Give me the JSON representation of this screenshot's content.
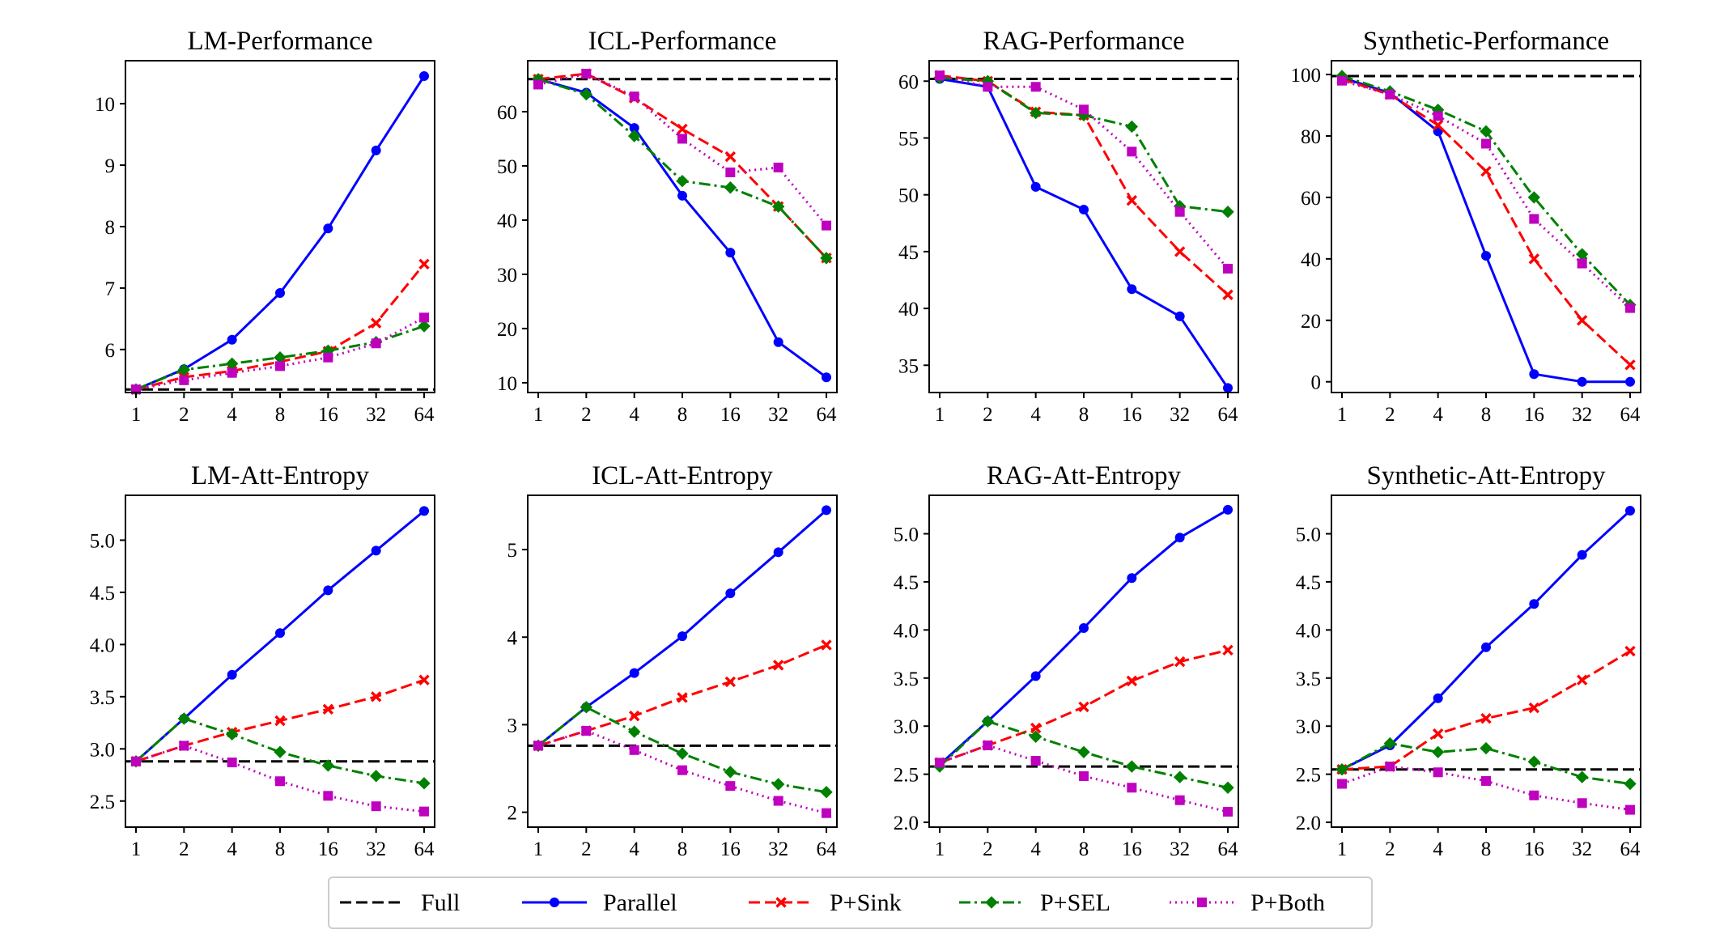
{
  "legend": {
    "entries": [
      {
        "key": "full",
        "label": "Full",
        "color": "#000000",
        "dash": "dashed",
        "marker": "none"
      },
      {
        "key": "parallel",
        "label": "Parallel",
        "color": "#0000ff",
        "dash": "solid",
        "marker": "circle"
      },
      {
        "key": "sink",
        "label": "P+Sink",
        "color": "#ff0000",
        "dash": "dashed",
        "marker": "x"
      },
      {
        "key": "sel",
        "label": "P+SEL",
        "color": "#008000",
        "dash": "dashdot",
        "marker": "diamond"
      },
      {
        "key": "both",
        "label": "P+Both",
        "color": "#bf00bf",
        "dash": "dotted",
        "marker": "square"
      }
    ],
    "placement": "bottom-center"
  },
  "chart_data": [
    {
      "type": "line",
      "title": "LM-Performance",
      "categories": [
        "1",
        "2",
        "4",
        "8",
        "16",
        "32",
        "64"
      ],
      "ylim": [
        5.3,
        10.7
      ],
      "yticks": [
        6,
        7,
        8,
        9,
        10
      ],
      "ytick_labels": [
        "6",
        "7",
        "8",
        "9",
        "10"
      ],
      "full": 5.35,
      "series": [
        {
          "key": "parallel",
          "name": "Parallel",
          "values": [
            5.35,
            5.68,
            6.16,
            6.92,
            7.97,
            9.24,
            10.45
          ]
        },
        {
          "key": "sink",
          "name": "P+Sink",
          "values": [
            5.35,
            5.55,
            5.65,
            5.8,
            5.97,
            6.43,
            7.39
          ]
        },
        {
          "key": "sel",
          "name": "P+SEL",
          "values": [
            5.35,
            5.67,
            5.77,
            5.87,
            5.98,
            6.12,
            6.38
          ]
        },
        {
          "key": "both",
          "name": "P+Both",
          "values": [
            5.35,
            5.5,
            5.62,
            5.73,
            5.87,
            6.1,
            6.52
          ]
        }
      ]
    },
    {
      "type": "line",
      "title": "ICL-Performance",
      "categories": [
        "1",
        "2",
        "4",
        "8",
        "16",
        "32",
        "64"
      ],
      "ylim": [
        8.2,
        69.4
      ],
      "yticks": [
        10,
        20,
        30,
        40,
        50,
        60
      ],
      "ytick_labels": [
        "10",
        "20",
        "30",
        "40",
        "50",
        "60"
      ],
      "full": 66.0,
      "series": [
        {
          "key": "parallel",
          "name": "Parallel",
          "values": [
            66.0,
            63.5,
            57.0,
            44.5,
            34.0,
            17.5,
            11.0
          ]
        },
        {
          "key": "sink",
          "name": "P+Sink",
          "values": [
            66.0,
            67.0,
            62.5,
            56.8,
            51.7,
            42.5,
            33.0
          ]
        },
        {
          "key": "sel",
          "name": "P+SEL",
          "values": [
            66.0,
            63.2,
            55.5,
            47.2,
            46.0,
            42.5,
            33.0
          ]
        },
        {
          "key": "both",
          "name": "P+Both",
          "values": [
            65.0,
            67.0,
            62.8,
            55.0,
            48.8,
            49.7,
            39.0
          ]
        }
      ]
    },
    {
      "type": "line",
      "title": "RAG-Performance",
      "categories": [
        "1",
        "2",
        "4",
        "8",
        "16",
        "32",
        "64"
      ],
      "ylim": [
        32.6,
        61.8
      ],
      "yticks": [
        35,
        40,
        45,
        50,
        55,
        60
      ],
      "ytick_labels": [
        "35",
        "40",
        "45",
        "50",
        "55",
        "60"
      ],
      "full": 60.2,
      "series": [
        {
          "key": "parallel",
          "name": "Parallel",
          "values": [
            60.2,
            59.5,
            50.7,
            48.7,
            41.7,
            39.3,
            33.0
          ]
        },
        {
          "key": "sink",
          "name": "P+Sink",
          "values": [
            60.5,
            60.0,
            57.3,
            57.0,
            49.5,
            45.0,
            41.2
          ]
        },
        {
          "key": "sel",
          "name": "P+SEL",
          "values": [
            60.3,
            60.0,
            57.2,
            57.0,
            56.0,
            49.0,
            48.5
          ]
        },
        {
          "key": "both",
          "name": "P+Both",
          "values": [
            60.5,
            59.5,
            59.5,
            57.5,
            53.8,
            48.5,
            43.5
          ]
        }
      ]
    },
    {
      "type": "line",
      "title": "Synthetic-Performance",
      "categories": [
        "1",
        "2",
        "4",
        "8",
        "16",
        "32",
        "64"
      ],
      "ylim": [
        -3.5,
        104.5
      ],
      "yticks": [
        0,
        20,
        40,
        60,
        80,
        100
      ],
      "ytick_labels": [
        "0",
        "20",
        "40",
        "60",
        "80",
        "100"
      ],
      "full": 99.5,
      "series": [
        {
          "key": "parallel",
          "name": "Parallel",
          "values": [
            99.0,
            94.0,
            81.5,
            41.0,
            2.5,
            0.0,
            0.0
          ]
        },
        {
          "key": "sink",
          "name": "P+Sink",
          "values": [
            98.5,
            93.5,
            83.5,
            68.5,
            40.0,
            20.0,
            5.5
          ]
        },
        {
          "key": "sel",
          "name": "P+SEL",
          "values": [
            99.5,
            94.5,
            88.5,
            81.5,
            60.0,
            41.5,
            25.0
          ]
        },
        {
          "key": "both",
          "name": "P+Both",
          "values": [
            98.0,
            93.5,
            86.5,
            77.5,
            53.0,
            38.5,
            24.0
          ]
        }
      ]
    },
    {
      "type": "line",
      "title": "LM-Att-Entropy",
      "categories": [
        "1",
        "2",
        "4",
        "8",
        "16",
        "32",
        "64"
      ],
      "ylim": [
        2.25,
        5.43
      ],
      "yticks": [
        2.5,
        3.0,
        3.5,
        4.0,
        4.5,
        5.0
      ],
      "ytick_labels": [
        "2.5",
        "3.0",
        "3.5",
        "4.0",
        "4.5",
        "5.0"
      ],
      "full": 2.88,
      "series": [
        {
          "key": "parallel",
          "name": "Parallel",
          "values": [
            2.88,
            3.29,
            3.71,
            4.11,
            4.52,
            4.9,
            5.28
          ]
        },
        {
          "key": "sink",
          "name": "P+Sink",
          "values": [
            2.88,
            3.03,
            3.16,
            3.27,
            3.38,
            3.5,
            3.66
          ]
        },
        {
          "key": "sel",
          "name": "P+SEL",
          "values": [
            2.88,
            3.29,
            3.14,
            2.97,
            2.84,
            2.74,
            2.67
          ]
        },
        {
          "key": "both",
          "name": "P+Both",
          "values": [
            2.88,
            3.03,
            2.87,
            2.69,
            2.55,
            2.45,
            2.4
          ]
        }
      ]
    },
    {
      "type": "line",
      "title": "ICL-Att-Entropy",
      "categories": [
        "1",
        "2",
        "4",
        "8",
        "16",
        "32",
        "64"
      ],
      "ylim": [
        1.83,
        5.62
      ],
      "yticks": [
        2,
        3,
        4,
        5
      ],
      "ytick_labels": [
        "2",
        "3",
        "4",
        "5"
      ],
      "full": 2.76,
      "series": [
        {
          "key": "parallel",
          "name": "Parallel",
          "values": [
            2.76,
            3.2,
            3.59,
            4.01,
            4.5,
            4.97,
            5.45
          ]
        },
        {
          "key": "sink",
          "name": "P+Sink",
          "values": [
            2.76,
            2.93,
            3.1,
            3.31,
            3.49,
            3.68,
            3.91
          ]
        },
        {
          "key": "sel",
          "name": "P+SEL",
          "values": [
            2.76,
            3.2,
            2.92,
            2.67,
            2.46,
            2.32,
            2.23
          ]
        },
        {
          "key": "both",
          "name": "P+Both",
          "values": [
            2.76,
            2.93,
            2.71,
            2.48,
            2.3,
            2.13,
            1.99
          ]
        }
      ]
    },
    {
      "type": "line",
      "title": "RAG-Att-Entropy",
      "categories": [
        "1",
        "2",
        "4",
        "8",
        "16",
        "32",
        "64"
      ],
      "ylim": [
        1.95,
        5.4
      ],
      "yticks": [
        2.0,
        2.5,
        3.0,
        3.5,
        4.0,
        4.5,
        5.0
      ],
      "ytick_labels": [
        "2.0",
        "2.5",
        "3.0",
        "3.5",
        "4.0",
        "4.5",
        "5.0"
      ],
      "full": 2.58,
      "series": [
        {
          "key": "parallel",
          "name": "Parallel",
          "values": [
            2.6,
            3.05,
            3.52,
            4.02,
            4.54,
            4.96,
            5.25
          ]
        },
        {
          "key": "sink",
          "name": "P+Sink",
          "values": [
            2.62,
            2.8,
            2.98,
            3.2,
            3.47,
            3.67,
            3.79
          ]
        },
        {
          "key": "sel",
          "name": "P+SEL",
          "values": [
            2.58,
            3.05,
            2.89,
            2.73,
            2.58,
            2.47,
            2.36
          ]
        },
        {
          "key": "both",
          "name": "P+Both",
          "values": [
            2.62,
            2.8,
            2.64,
            2.48,
            2.36,
            2.23,
            2.11
          ]
        }
      ]
    },
    {
      "type": "line",
      "title": "Synthetic-Att-Entropy",
      "categories": [
        "1",
        "2",
        "4",
        "8",
        "16",
        "32",
        "64"
      ],
      "ylim": [
        1.95,
        5.4
      ],
      "yticks": [
        2.0,
        2.5,
        3.0,
        3.5,
        4.0,
        4.5,
        5.0
      ],
      "ytick_labels": [
        "2.0",
        "2.5",
        "3.0",
        "3.5",
        "4.0",
        "4.5",
        "5.0"
      ],
      "full": 2.55,
      "series": [
        {
          "key": "parallel",
          "name": "Parallel",
          "values": [
            2.55,
            2.8,
            3.29,
            3.82,
            4.27,
            4.78,
            5.24
          ]
        },
        {
          "key": "sink",
          "name": "P+Sink",
          "values": [
            2.55,
            2.58,
            2.92,
            3.08,
            3.19,
            3.48,
            3.78
          ]
        },
        {
          "key": "sel",
          "name": "P+SEL",
          "values": [
            2.55,
            2.82,
            2.73,
            2.77,
            2.63,
            2.47,
            2.4
          ]
        },
        {
          "key": "both",
          "name": "P+Both",
          "values": [
            2.4,
            2.58,
            2.52,
            2.43,
            2.28,
            2.2,
            2.13
          ]
        }
      ]
    }
  ]
}
